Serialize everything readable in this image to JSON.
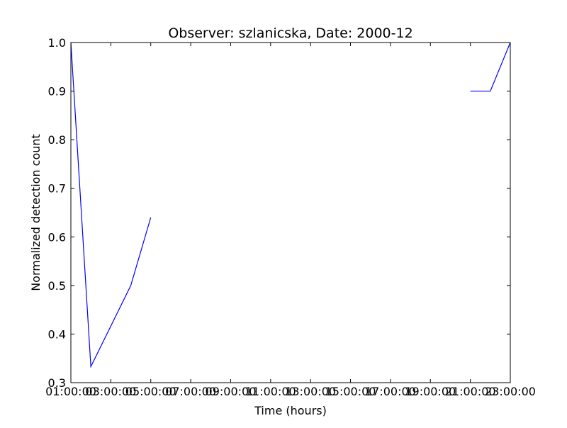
{
  "chart_data": {
    "type": "line",
    "title": "Observer: szlanicska, Date: 2000-12",
    "xlabel": "Time (hours)",
    "ylabel": "Normalized detection count",
    "xlim": [
      "01:00:00",
      "23:00:00"
    ],
    "ylim": [
      0.3,
      1.0
    ],
    "x_ticks": [
      "01:00:00",
      "03:00:00",
      "05:00:00",
      "07:00:00",
      "09:00:00",
      "11:00:00",
      "13:00:00",
      "15:00:00",
      "17:00:00",
      "19:00:00",
      "21:00:00",
      "23:00:00"
    ],
    "y_ticks": [
      "0.3",
      "0.4",
      "0.5",
      "0.6",
      "0.7",
      "0.8",
      "0.9",
      "1.0"
    ],
    "grid": false,
    "legend": "none",
    "line_color": "#0000ff",
    "series": [
      {
        "segments": [
          [
            {
              "x": "01:00:00",
              "y": 1.0
            },
            {
              "x": "02:00:00",
              "y": 0.333
            },
            {
              "x": "04:00:00",
              "y": 0.5
            },
            {
              "x": "05:00:00",
              "y": 0.64
            }
          ],
          [
            {
              "x": "21:00:00",
              "y": 0.9
            },
            {
              "x": "22:00:00",
              "y": 0.9
            },
            {
              "x": "23:00:00",
              "y": 1.0
            }
          ]
        ]
      }
    ]
  }
}
